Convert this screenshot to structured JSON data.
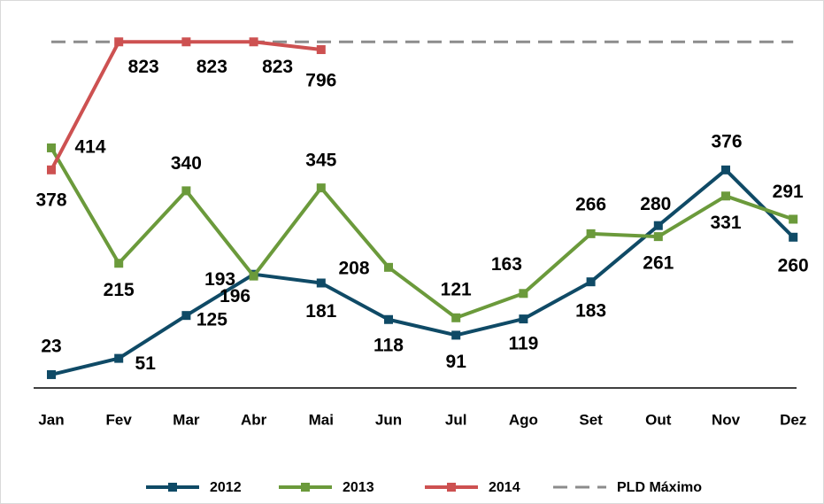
{
  "chart_data": {
    "type": "line",
    "categories": [
      "Jan",
      "Fev",
      "Mar",
      "Abr",
      "Mai",
      "Jun",
      "Jul",
      "Ago",
      "Set",
      "Out",
      "Nov",
      "Dez"
    ],
    "ylim": [
      0,
      640
    ],
    "y2lim": [
      -380,
      910
    ],
    "series": [
      {
        "name": "2012",
        "color": "#0f4a66",
        "values": [
          23,
          51,
          125,
          196,
          181,
          118,
          91,
          119,
          183,
          280,
          376,
          260
        ]
      },
      {
        "name": "2013",
        "color": "#6b9a3b",
        "values": [
          414,
          215,
          340,
          193,
          345,
          208,
          121,
          163,
          266,
          261,
          331,
          291
        ]
      },
      {
        "name": "2014",
        "color": "#cd5151",
        "axis": "y2",
        "values": [
          378,
          823,
          823,
          823,
          796,
          null,
          null,
          null,
          null,
          null,
          null,
          null
        ]
      },
      {
        "name": "PLD Máximo",
        "color": "#8c8c8c",
        "axis": "y2",
        "dashed": true,
        "values": [
          823,
          823,
          823,
          823,
          823,
          823,
          823,
          823,
          823,
          823,
          823,
          823
        ]
      }
    ]
  }
}
